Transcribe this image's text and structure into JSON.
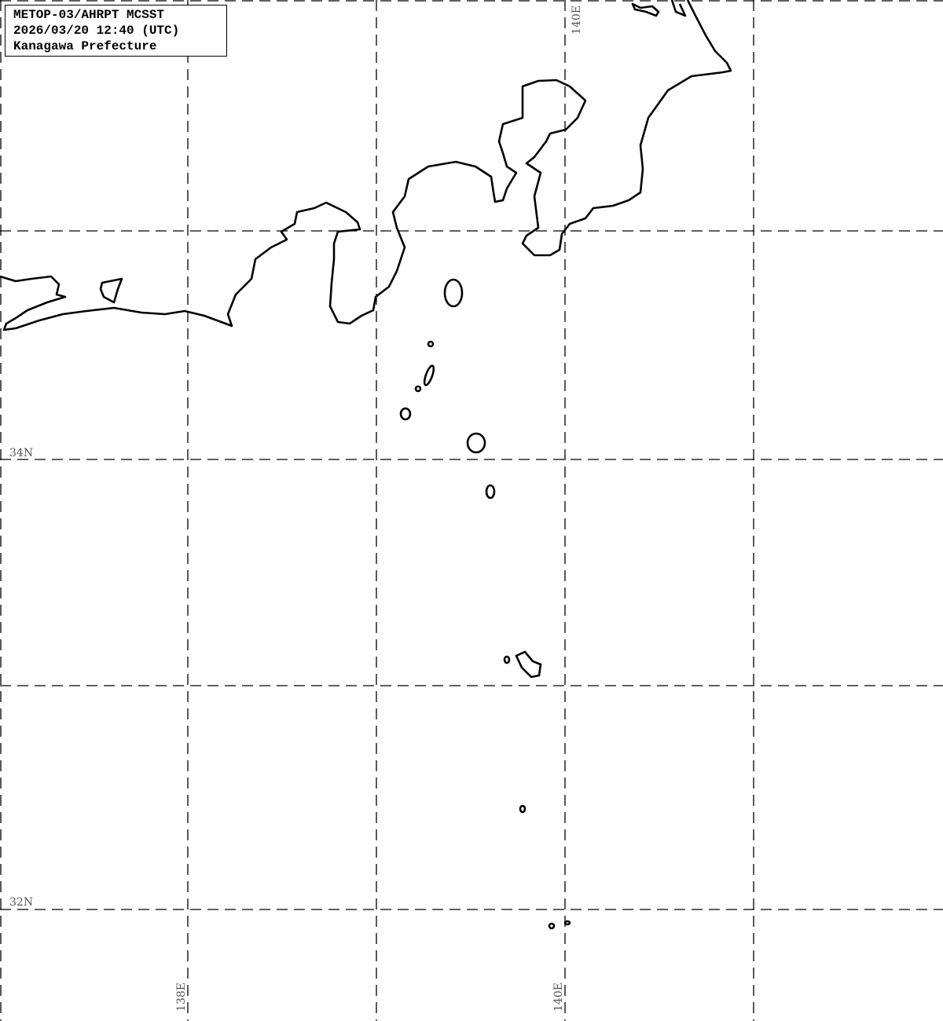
{
  "info_box": {
    "line1": "METOP-03/AHRPT MCSST",
    "line2": "2026/03/20 12:40 (UTC)",
    "line3": "Kanagawa Prefecture"
  },
  "grid_labels": {
    "lat_34": "34N",
    "lat_32": "32N",
    "lon_138": "138E",
    "lon_140_bottom": "140E",
    "lon_140_top": "140E"
  },
  "colors": {
    "coastline": "#000000",
    "grid": "#000000",
    "background": "#ffffff"
  }
}
